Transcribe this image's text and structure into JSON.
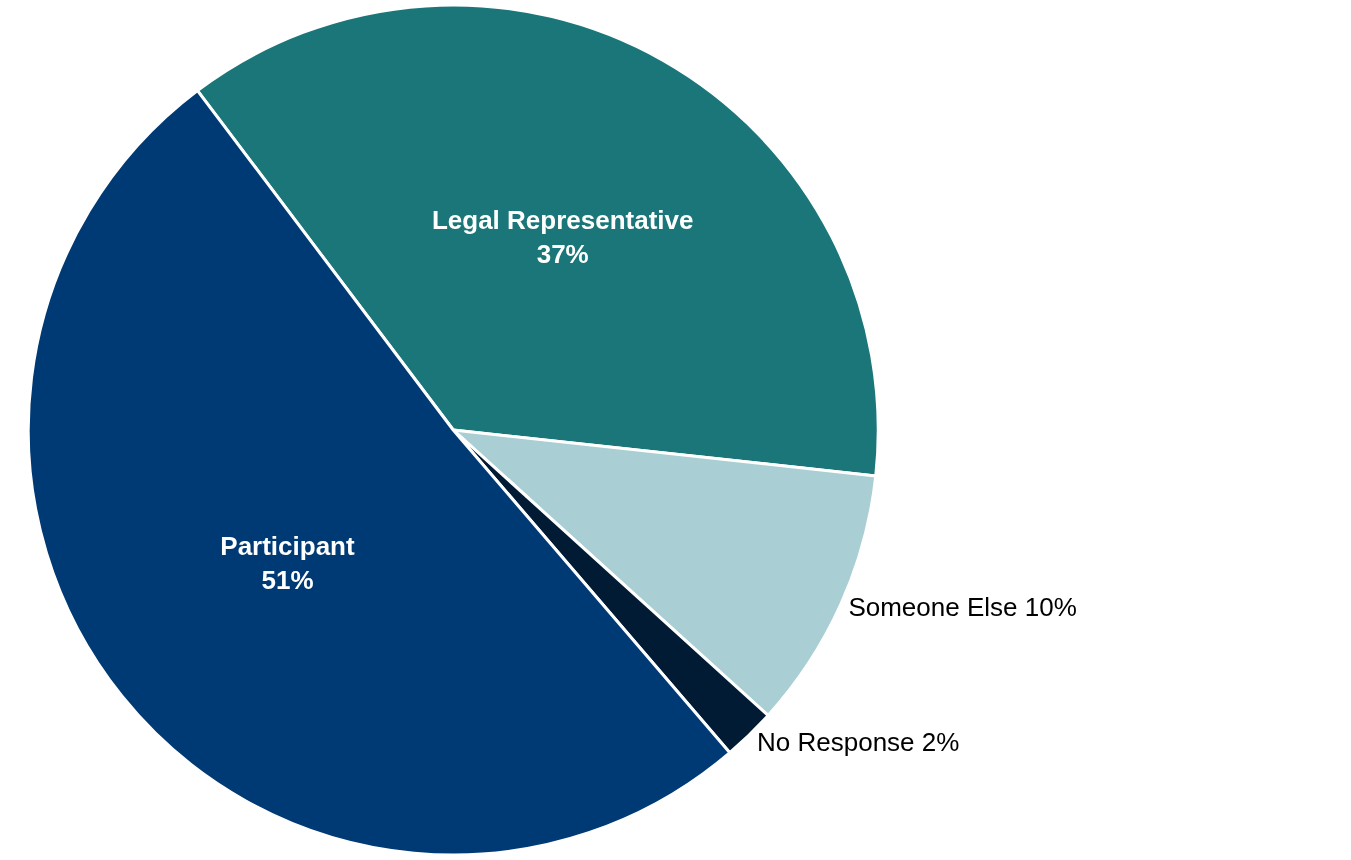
{
  "chart_data": {
    "type": "pie",
    "categories": [
      "Legal Representative",
      "Someone Else",
      "No Response",
      "Participant"
    ],
    "values": [
      37,
      10,
      2,
      51
    ],
    "colors": [
      "#1b7679",
      "#a9cfd4",
      "#011b35",
      "#003a75"
    ],
    "value_labels": [
      "37%",
      "10%",
      "2%",
      "51%"
    ],
    "legend": false
  }
}
